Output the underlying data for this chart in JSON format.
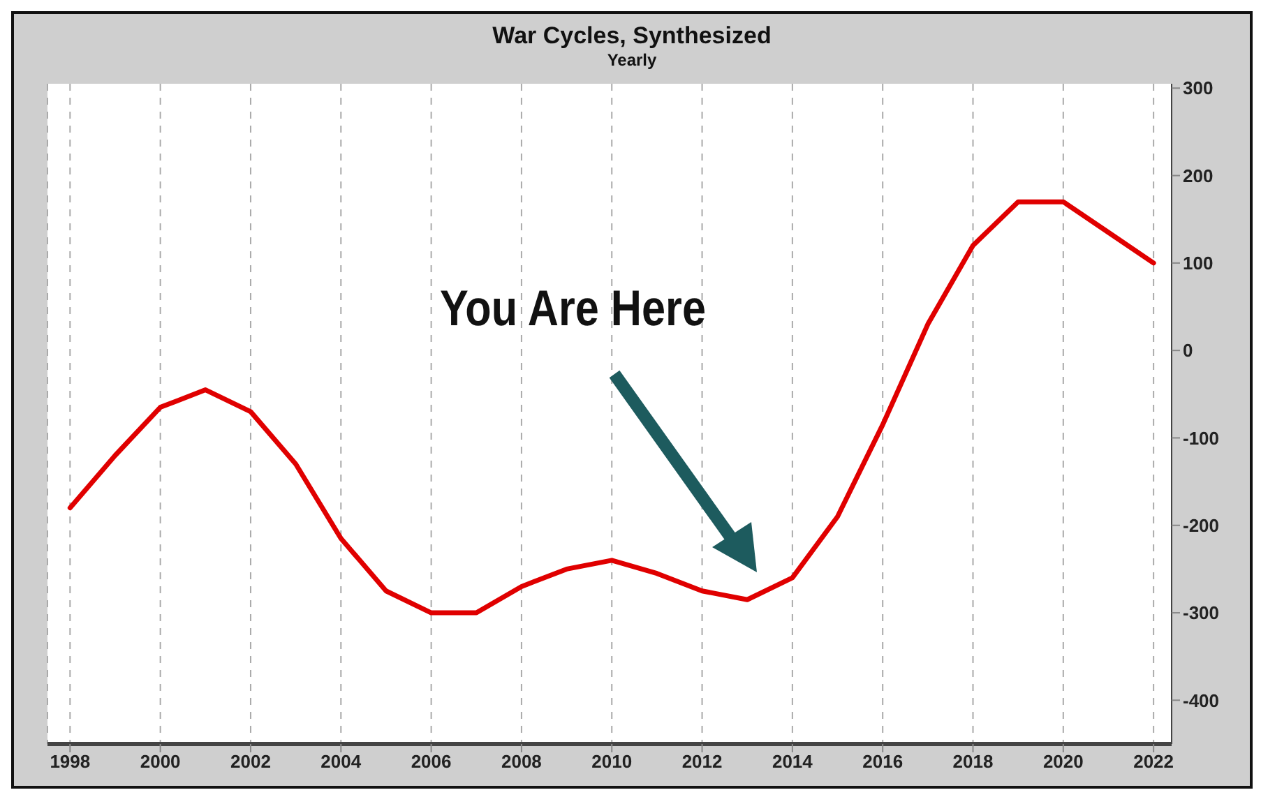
{
  "chart_data": {
    "type": "line",
    "title": "War Cycles, Synthesized",
    "subtitle": "Yearly",
    "x": [
      1998,
      1999,
      2000,
      2001,
      2002,
      2003,
      2004,
      2005,
      2006,
      2007,
      2008,
      2009,
      2010,
      2011,
      2012,
      2013,
      2014,
      2015,
      2016,
      2017,
      2018,
      2019,
      2020,
      2021,
      2022
    ],
    "series": [
      {
        "color": "#e00000",
        "values": [
          -180,
          -120,
          -65,
          -45,
          -70,
          -130,
          -215,
          -275,
          -300,
          -300,
          -270,
          -250,
          -240,
          -255,
          -275,
          -285,
          -260,
          -190,
          -85,
          30,
          120,
          170,
          170,
          135,
          100
        ]
      }
    ],
    "xlim": [
      1997.5,
      2022.4
    ],
    "xticks": [
      1998,
      2000,
      2002,
      2004,
      2006,
      2008,
      2010,
      2012,
      2014,
      2016,
      2018,
      2020,
      2022
    ],
    "ylim": [
      -450,
      305
    ],
    "yticks": [
      -400,
      -300,
      -200,
      -100,
      0,
      100,
      200,
      300
    ],
    "grid": "x",
    "marker": "none",
    "line_style": "solid",
    "annotations": [
      "You Are Here"
    ]
  }
}
